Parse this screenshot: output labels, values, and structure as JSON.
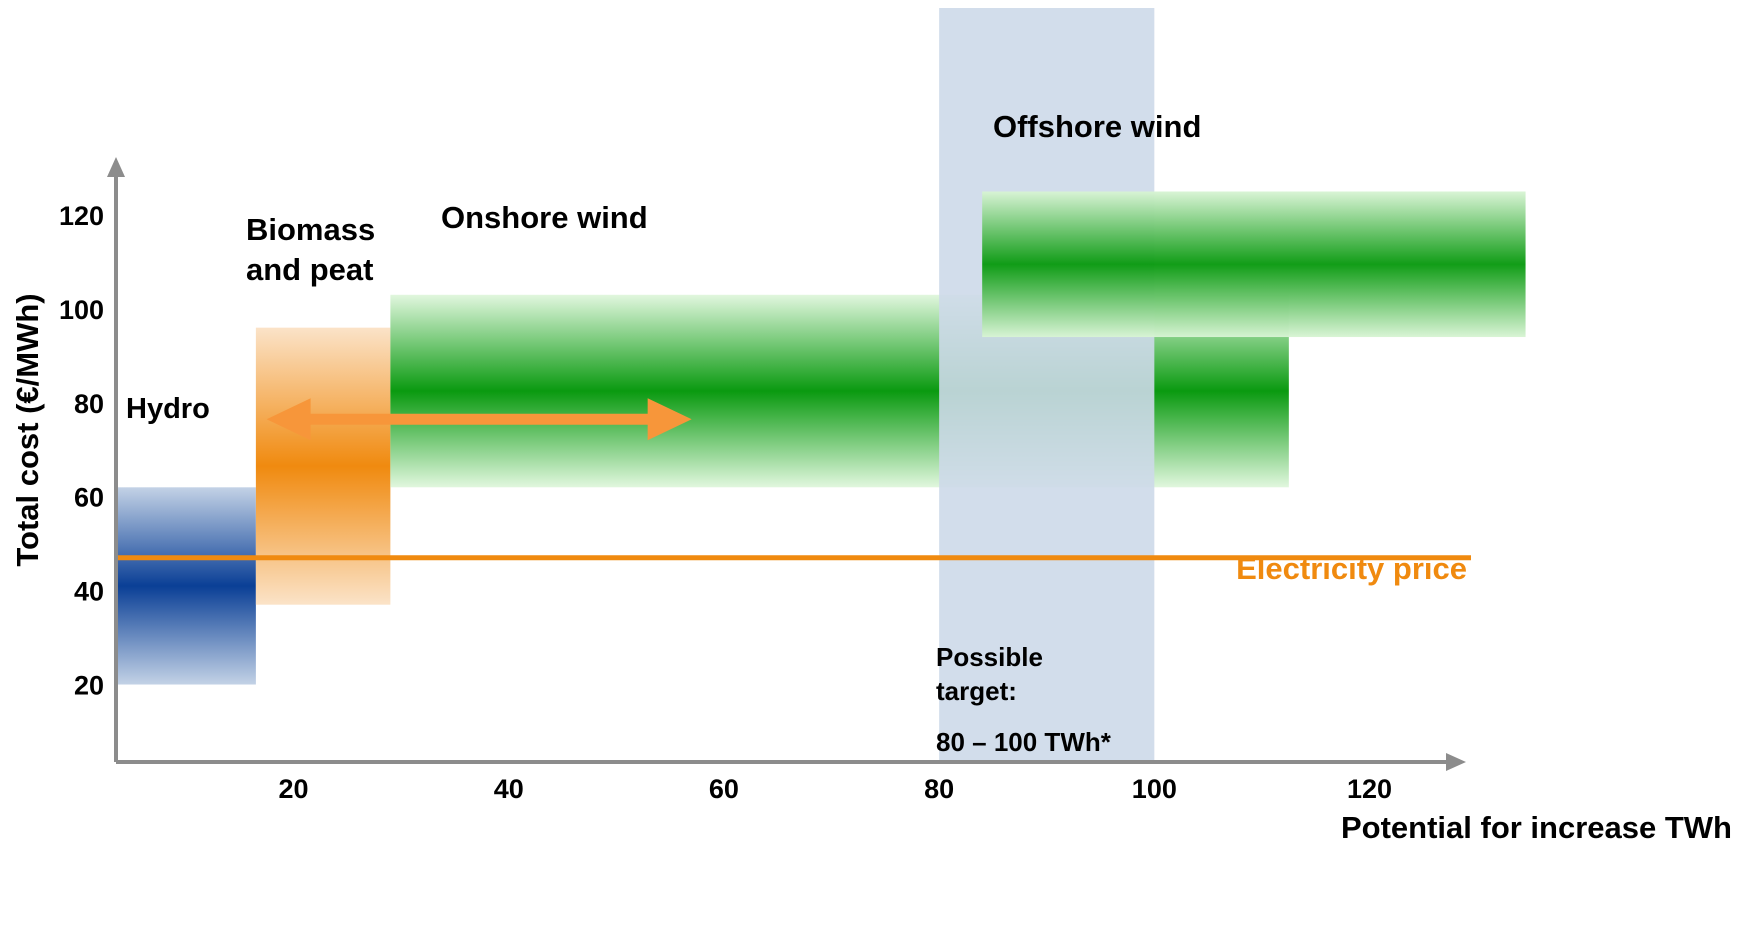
{
  "chart_data": {
    "type": "area",
    "title": "",
    "xlabel": "Potential for increase TWh",
    "ylabel": "Total cost (€/MWh)",
    "x_ticks": [
      20,
      40,
      60,
      80,
      100,
      120
    ],
    "y_ticks": [
      20,
      40,
      60,
      80,
      100,
      120
    ],
    "xlim": [
      3.5,
      128.5
    ],
    "ylim": [
      3.5,
      130
    ],
    "grid": false,
    "bands": [
      {
        "name": "Hydro",
        "x0": 3.5,
        "x1": 16.5,
        "y_low": 20,
        "y_high": 62,
        "y_center": 45,
        "color": "#0a3f96",
        "light": "#c3d2e6"
      },
      {
        "name": "Biomass and peat",
        "x0": 16.5,
        "x1": 29,
        "y_low": 37,
        "y_high": 96,
        "y_center": 61,
        "color": "#f08a0f",
        "light": "#fbe3c8"
      },
      {
        "name": "Onshore wind",
        "x0": 29,
        "x1": 112.5,
        "y_low": 62,
        "y_high": 103,
        "y_center": 81,
        "color": "#0a9a10",
        "light": "#e1f7de"
      },
      {
        "name": "Offshore wind",
        "x0": 84,
        "x1": 134.5,
        "y_low": 94,
        "y_high": 125,
        "y_center": 110,
        "color": "#0a9a10",
        "light": "#d8f4d4"
      }
    ],
    "reference_lines": [
      {
        "label": "Electricity price",
        "y": 47,
        "color": "#f08a0f"
      }
    ],
    "target_range": {
      "label": "Possible target:",
      "range_text": "80 – 100 TWh*",
      "x0": 80,
      "x1": 100,
      "color": "#cdd9e9"
    },
    "range_arrow": {
      "x0": 17.5,
      "x1": 57,
      "y": 76.5,
      "color": "#f7963a"
    },
    "annotations": {
      "hydro": "Hydro",
      "biomass_line1": "Biomass",
      "biomass_line2": "and peat",
      "onshore": "Onshore wind",
      "offshore": "Offshore wind",
      "target_line1": "Possible",
      "target_line2": "target:",
      "target_line3": "80 – 100 TWh*"
    }
  }
}
